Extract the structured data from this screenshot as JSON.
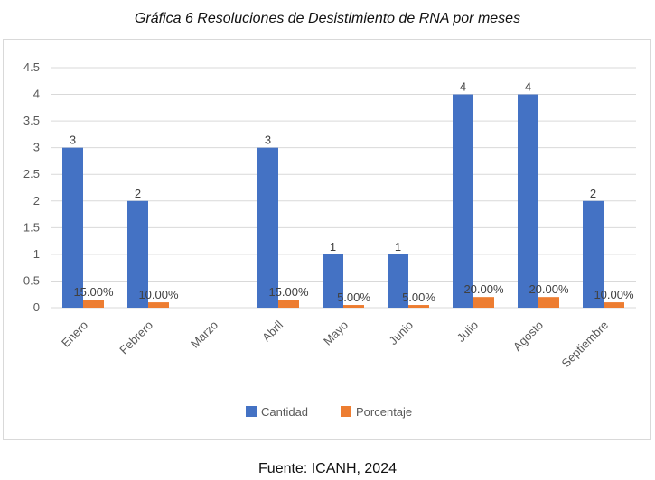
{
  "title": "Gráfica 6 Resoluciones de Desistimiento de RNA por meses",
  "footer": "Fuente: ICANH, 2024",
  "colors": {
    "cantidad": "#4472C4",
    "porcentaje": "#ED7D31",
    "grid": "#d9d9d9",
    "text": "#595959"
  },
  "chart_data": {
    "type": "bar",
    "categories": [
      "Enero",
      "Febrero",
      "Marzo",
      "Abril",
      "Mayo",
      "Junio",
      "Julio",
      "Agosto",
      "Septiembre"
    ],
    "series": [
      {
        "name": "Cantidad",
        "values": [
          3,
          2,
          0,
          3,
          1,
          1,
          4,
          4,
          2
        ],
        "labels": [
          "3",
          "2",
          "",
          "3",
          "1",
          "1",
          "4",
          "4",
          "2"
        ]
      },
      {
        "name": "Porcentaje",
        "values": [
          0.15,
          0.1,
          0,
          0.15,
          0.05,
          0.05,
          0.2,
          0.2,
          0.1
        ],
        "labels": [
          "15.00%",
          "10.00%",
          "",
          "15.00%",
          "5.00%",
          "5.00%",
          "20.00%",
          "20.00%",
          "10.00%"
        ]
      }
    ],
    "yticks": [
      "0",
      "0.5",
      "1",
      "1.5",
      "2",
      "2.5",
      "3",
      "3.5",
      "4",
      "4.5"
    ],
    "ylim": [
      0,
      4.5
    ],
    "grid": true,
    "legend": "bottom"
  }
}
